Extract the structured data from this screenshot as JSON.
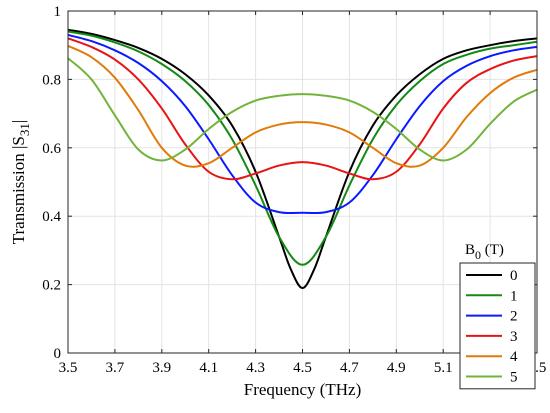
{
  "chart_data": {
    "type": "line",
    "title": "",
    "xlabel": "Frequency (THz)",
    "ylabel": "Transmission |S31|",
    "ylabel_parts": {
      "main": "Transmission |S",
      "sub": "31",
      "end": "|"
    },
    "xlim": [
      3.5,
      5.5
    ],
    "ylim": [
      0,
      1
    ],
    "xticks": [
      "3.5",
      "3.7",
      "3.9",
      "4.1",
      "4.3",
      "4.5",
      "4.7",
      "4.9",
      "5.1",
      "5.3",
      "5.5"
    ],
    "yticks": [
      "0",
      "0.2",
      "0.4",
      "0.6",
      "0.8",
      "1"
    ],
    "grid": true,
    "legend": {
      "title": "B0 (T)",
      "title_parts": {
        "main": "B",
        "sub": "0",
        "end": " (T)"
      },
      "placement": "right"
    },
    "series": [
      {
        "name": "0",
        "color": "#000000",
        "points": [
          [
            3.5,
            0.945
          ],
          [
            3.6,
            0.933
          ],
          [
            3.7,
            0.915
          ],
          [
            3.8,
            0.892
          ],
          [
            3.9,
            0.86
          ],
          [
            4.0,
            0.815
          ],
          [
            4.1,
            0.753
          ],
          [
            4.2,
            0.665
          ],
          [
            4.3,
            0.53
          ],
          [
            4.4,
            0.34
          ],
          [
            4.45,
            0.245
          ],
          [
            4.5,
            0.19
          ],
          [
            4.55,
            0.245
          ],
          [
            4.6,
            0.34
          ],
          [
            4.7,
            0.53
          ],
          [
            4.8,
            0.665
          ],
          [
            4.9,
            0.753
          ],
          [
            5.0,
            0.815
          ],
          [
            5.1,
            0.86
          ],
          [
            5.2,
            0.885
          ],
          [
            5.3,
            0.9
          ],
          [
            5.4,
            0.912
          ],
          [
            5.5,
            0.92
          ]
        ]
      },
      {
        "name": "1",
        "color": "#138a13",
        "points": [
          [
            3.5,
            0.94
          ],
          [
            3.6,
            0.928
          ],
          [
            3.7,
            0.908
          ],
          [
            3.8,
            0.882
          ],
          [
            3.9,
            0.845
          ],
          [
            4.0,
            0.795
          ],
          [
            4.1,
            0.725
          ],
          [
            4.2,
            0.625
          ],
          [
            4.3,
            0.49
          ],
          [
            4.4,
            0.34
          ],
          [
            4.5,
            0.258
          ],
          [
            4.6,
            0.34
          ],
          [
            4.7,
            0.49
          ],
          [
            4.8,
            0.625
          ],
          [
            4.9,
            0.725
          ],
          [
            5.0,
            0.795
          ],
          [
            5.1,
            0.845
          ],
          [
            5.2,
            0.872
          ],
          [
            5.3,
            0.89
          ],
          [
            5.4,
            0.9
          ],
          [
            5.5,
            0.91
          ]
        ]
      },
      {
        "name": "2",
        "color": "#0a1aff",
        "points": [
          [
            3.5,
            0.93
          ],
          [
            3.6,
            0.912
          ],
          [
            3.7,
            0.885
          ],
          [
            3.8,
            0.848
          ],
          [
            3.9,
            0.795
          ],
          [
            4.0,
            0.722
          ],
          [
            4.1,
            0.625
          ],
          [
            4.2,
            0.52
          ],
          [
            4.3,
            0.44
          ],
          [
            4.4,
            0.412
          ],
          [
            4.5,
            0.41
          ],
          [
            4.6,
            0.412
          ],
          [
            4.7,
            0.44
          ],
          [
            4.8,
            0.52
          ],
          [
            4.9,
            0.625
          ],
          [
            5.0,
            0.722
          ],
          [
            5.1,
            0.795
          ],
          [
            5.2,
            0.84
          ],
          [
            5.3,
            0.868
          ],
          [
            5.4,
            0.885
          ],
          [
            5.5,
            0.895
          ]
        ]
      },
      {
        "name": "3",
        "color": "#e61414",
        "points": [
          [
            3.5,
            0.92
          ],
          [
            3.6,
            0.895
          ],
          [
            3.7,
            0.858
          ],
          [
            3.8,
            0.8
          ],
          [
            3.9,
            0.715
          ],
          [
            4.0,
            0.61
          ],
          [
            4.1,
            0.53
          ],
          [
            4.2,
            0.508
          ],
          [
            4.3,
            0.525
          ],
          [
            4.4,
            0.548
          ],
          [
            4.5,
            0.558
          ],
          [
            4.6,
            0.548
          ],
          [
            4.7,
            0.525
          ],
          [
            4.8,
            0.508
          ],
          [
            4.9,
            0.53
          ],
          [
            5.0,
            0.61
          ],
          [
            5.1,
            0.715
          ],
          [
            5.2,
            0.79
          ],
          [
            5.3,
            0.83
          ],
          [
            5.4,
            0.855
          ],
          [
            5.5,
            0.868
          ]
        ]
      },
      {
        "name": "4",
        "color": "#e07b0a",
        "points": [
          [
            3.5,
            0.898
          ],
          [
            3.6,
            0.865
          ],
          [
            3.7,
            0.805
          ],
          [
            3.8,
            0.71
          ],
          [
            3.9,
            0.6
          ],
          [
            4.0,
            0.548
          ],
          [
            4.1,
            0.555
          ],
          [
            4.2,
            0.6
          ],
          [
            4.3,
            0.645
          ],
          [
            4.4,
            0.668
          ],
          [
            4.5,
            0.675
          ],
          [
            4.6,
            0.668
          ],
          [
            4.7,
            0.645
          ],
          [
            4.8,
            0.6
          ],
          [
            4.9,
            0.555
          ],
          [
            5.0,
            0.548
          ],
          [
            5.1,
            0.6
          ],
          [
            5.2,
            0.69
          ],
          [
            5.3,
            0.76
          ],
          [
            5.4,
            0.805
          ],
          [
            5.5,
            0.828
          ]
        ]
      },
      {
        "name": "5",
        "color": "#72b33a",
        "points": [
          [
            3.5,
            0.862
          ],
          [
            3.6,
            0.8
          ],
          [
            3.7,
            0.695
          ],
          [
            3.8,
            0.595
          ],
          [
            3.9,
            0.563
          ],
          [
            4.0,
            0.595
          ],
          [
            4.1,
            0.655
          ],
          [
            4.2,
            0.705
          ],
          [
            4.3,
            0.738
          ],
          [
            4.4,
            0.752
          ],
          [
            4.5,
            0.757
          ],
          [
            4.6,
            0.752
          ],
          [
            4.7,
            0.738
          ],
          [
            4.8,
            0.705
          ],
          [
            4.9,
            0.655
          ],
          [
            5.0,
            0.595
          ],
          [
            5.1,
            0.563
          ],
          [
            5.2,
            0.595
          ],
          [
            5.3,
            0.67
          ],
          [
            5.4,
            0.735
          ],
          [
            5.5,
            0.77
          ]
        ]
      }
    ]
  }
}
